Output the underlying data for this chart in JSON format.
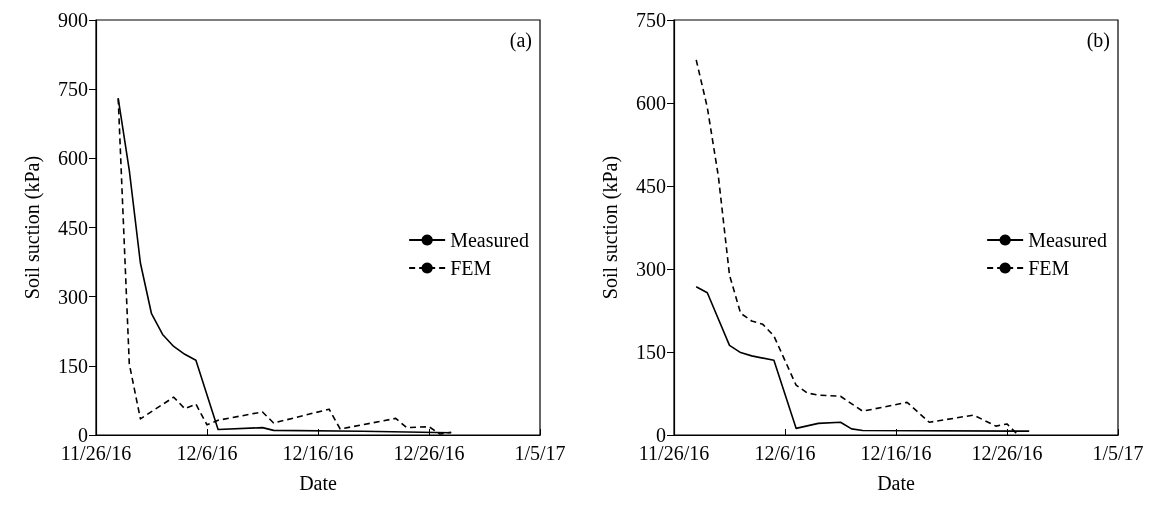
{
  "chart_data": [
    {
      "type": "line",
      "xlabel": "Date",
      "ylabel": "Soil suction (kPa)",
      "annotations": [
        "(a)"
      ],
      "legend": "right",
      "xlim": [
        "2016-11-26",
        "2017-01-05"
      ],
      "xticks": [
        {
          "value": "2016-11-26",
          "label": "11/26/16"
        },
        {
          "value": "2016-12-06",
          "label": "12/6/16"
        },
        {
          "value": "2016-12-16",
          "label": "12/16/16"
        },
        {
          "value": "2016-12-26",
          "label": "12/26/16"
        },
        {
          "value": "2017-01-05",
          "label": "1/5/17"
        }
      ],
      "ylim": [
        0,
        900
      ],
      "yticks": [
        0,
        150,
        300,
        450,
        600,
        750,
        900
      ],
      "series": [
        {
          "name": "Measured",
          "color": "#000000",
          "line_style": "solid",
          "x": [
            "2016-11-28",
            "2016-11-29",
            "2016-11-30",
            "2016-12-01",
            "2016-12-02",
            "2016-12-03",
            "2016-12-04",
            "2016-12-05",
            "2016-12-07",
            "2016-12-11",
            "2016-12-12",
            "2016-12-20",
            "2016-12-28"
          ],
          "values": [
            730,
            574,
            373,
            263,
            218,
            192,
            175,
            162,
            12,
            16,
            10,
            8,
            5
          ]
        },
        {
          "name": "FEM",
          "color": "#000000",
          "line_style": "dashed",
          "x": [
            "2016-11-28",
            "2016-11-29",
            "2016-11-30",
            "2016-12-03",
            "2016-12-04",
            "2016-12-05",
            "2016-12-06",
            "2016-12-07",
            "2016-12-11",
            "2016-12-12",
            "2016-12-17",
            "2016-12-18",
            "2016-12-23",
            "2016-12-24",
            "2016-12-26",
            "2016-12-27",
            "2016-12-28"
          ],
          "values": [
            730,
            154,
            35,
            82,
            57,
            67,
            22,
            32,
            50,
            26,
            56,
            13,
            36,
            16,
            18,
            2,
            6
          ]
        }
      ]
    },
    {
      "type": "line",
      "xlabel": "Date",
      "ylabel": "Soil suction (kPa)",
      "annotations": [
        "(b)"
      ],
      "legend": "right",
      "xlim": [
        "2016-11-26",
        "2017-01-05"
      ],
      "xticks": [
        {
          "value": "2016-11-26",
          "label": "11/26/16"
        },
        {
          "value": "2016-12-06",
          "label": "12/6/16"
        },
        {
          "value": "2016-12-16",
          "label": "12/16/16"
        },
        {
          "value": "2016-12-26",
          "label": "12/26/16"
        },
        {
          "value": "2017-01-05",
          "label": "1/5/17"
        }
      ],
      "ylim": [
        0,
        750
      ],
      "yticks": [
        0,
        150,
        300,
        450,
        600,
        750
      ],
      "series": [
        {
          "name": "Measured",
          "color": "#000000",
          "line_style": "solid",
          "x": [
            "2016-11-28",
            "2016-11-29",
            "2016-12-01",
            "2016-12-02",
            "2016-12-03",
            "2016-12-05",
            "2016-12-07",
            "2016-12-09",
            "2016-12-11",
            "2016-12-12",
            "2016-12-13",
            "2016-12-28"
          ],
          "values": [
            268,
            257,
            162,
            149,
            143,
            135,
            12,
            21,
            23,
            11,
            8,
            7
          ]
        },
        {
          "name": "FEM",
          "color": "#000000",
          "line_style": "dashed",
          "x": [
            "2016-11-28",
            "2016-11-29",
            "2016-11-30",
            "2016-12-01",
            "2016-12-02",
            "2016-12-03",
            "2016-12-04",
            "2016-12-05",
            "2016-12-07",
            "2016-12-08",
            "2016-12-09",
            "2016-12-11",
            "2016-12-13",
            "2016-12-17",
            "2016-12-19",
            "2016-12-23",
            "2016-12-25",
            "2016-12-26",
            "2016-12-27"
          ],
          "values": [
            678,
            592,
            467,
            289,
            220,
            206,
            200,
            179,
            90,
            76,
            72,
            70,
            43,
            59,
            23,
            36,
            16,
            20,
            0
          ]
        }
      ]
    }
  ]
}
